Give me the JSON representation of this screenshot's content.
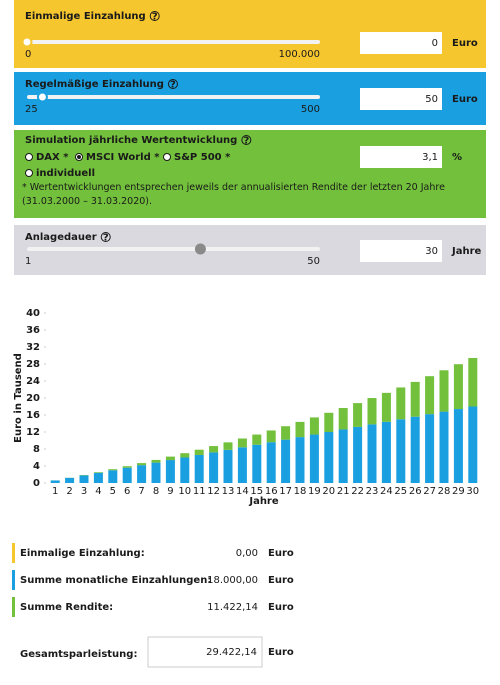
{
  "help_icon": "?",
  "panels": [
    {
      "title": "Einmalige Einzahlung",
      "slider": {
        "min": 0,
        "max": {
          "value": 100000,
          "label": "100.000"
        },
        "value": 0
      },
      "input": "0",
      "unit": "Euro"
    },
    {
      "title": "Regelmäßige Einzahlung",
      "slider": {
        "min": 25,
        "max": 500,
        "value": 50
      },
      "input": "50",
      "unit": "Euro"
    },
    {
      "title": "Simulation jährliche Wertentwicklung",
      "options": [
        "DAX *",
        "MSCI World *",
        "S&P 500 *",
        "individuell"
      ],
      "selected": 1,
      "input": "3,1",
      "unit": "%",
      "note": "* Wertentwicklungen entsprechen jeweils der annualisierten Rendite der letzten 20 Jahre (31.03.2000 – 31.03.2020)."
    },
    {
      "title": "Anlagedauer",
      "slider": {
        "min": 1,
        "max": 50,
        "value": 30
      },
      "input": "30",
      "unit": "Jahre"
    }
  ],
  "chart_data": {
    "type": "bar",
    "stacked": true,
    "categories": [
      1,
      2,
      3,
      4,
      5,
      6,
      7,
      8,
      9,
      10,
      11,
      12,
      13,
      14,
      15,
      16,
      17,
      18,
      19,
      20,
      21,
      22,
      23,
      24,
      25,
      26,
      27,
      28,
      29,
      30
    ],
    "series": [
      {
        "color": "#1a9fe0",
        "values": [
          0.6,
          1.2,
          1.8,
          2.4,
          3.0,
          3.6,
          4.2,
          4.8,
          5.4,
          6.0,
          6.6,
          7.2,
          7.8,
          8.4,
          9.0,
          9.6,
          10.2,
          10.8,
          11.4,
          12.0,
          12.6,
          13.2,
          13.8,
          14.4,
          15.0,
          15.6,
          16.2,
          16.8,
          17.4,
          18.0
        ]
      },
      {
        "color": "#72c03b",
        "values": [
          0.01,
          0.04,
          0.08,
          0.15,
          0.24,
          0.35,
          0.48,
          0.63,
          0.81,
          1.01,
          1.23,
          1.49,
          1.76,
          2.07,
          2.4,
          2.76,
          3.16,
          3.58,
          4.03,
          4.52,
          5.04,
          5.6,
          6.19,
          6.81,
          7.48,
          8.19,
          8.93,
          9.72,
          10.55,
          11.42
        ]
      }
    ],
    "ylim": [
      0,
      40
    ],
    "yticks": [
      0,
      4,
      8,
      12,
      16,
      20,
      24,
      28,
      32,
      36,
      40
    ],
    "y_label": "Euro in Tausend",
    "x_label": "Jahre"
  },
  "summary": {
    "rows": [
      {
        "label": "Einmalige Einzahlung:",
        "value": "0,00",
        "unit": "Euro"
      },
      {
        "label": "Summe monatliche Einzahlungen:",
        "value": "18.000,00",
        "unit": "Euro"
      },
      {
        "label": "Summe Rendite:",
        "value": "11.422,14",
        "unit": "Euro"
      }
    ],
    "total": {
      "label": "Gesamtsparleistung:",
      "value": "29.422,14",
      "unit": "Euro"
    }
  }
}
